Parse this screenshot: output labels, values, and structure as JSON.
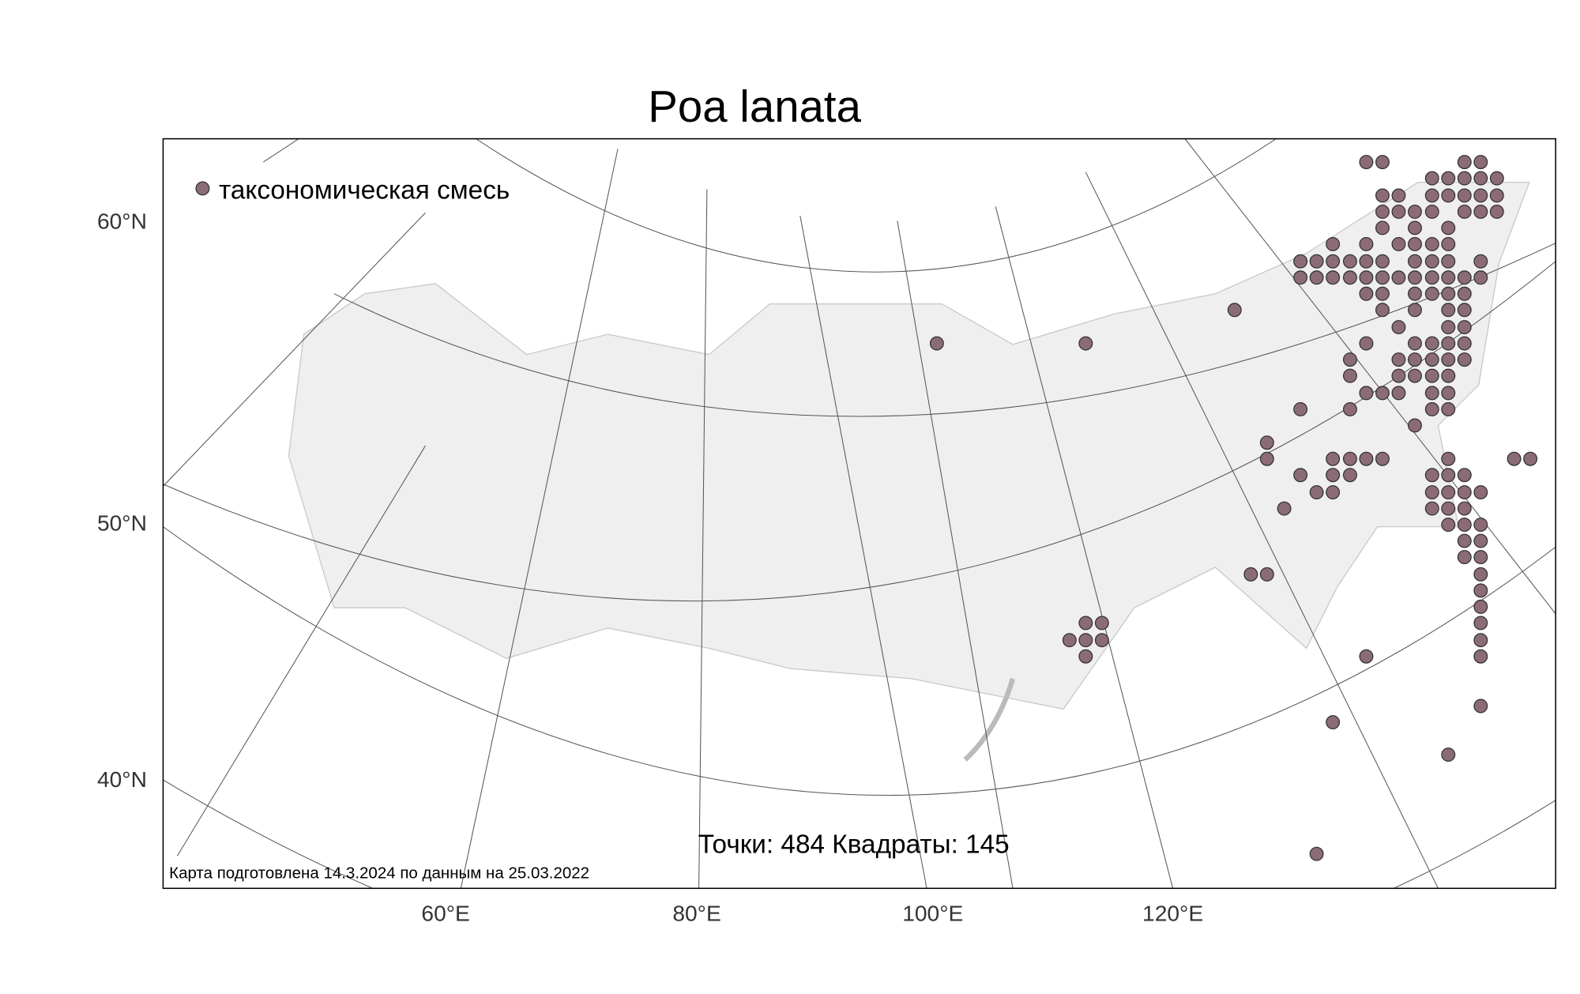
{
  "title": "Poa lanata",
  "legend": {
    "label": "таксономическая смесь"
  },
  "axes": {
    "lat_labels": [
      "60°N",
      "50°N",
      "40°N"
    ],
    "lon_labels": [
      "60°E",
      "80°E",
      "100°E",
      "120°E"
    ]
  },
  "stats": "Точки: 484 Квадраты: 145",
  "footer": "Карта подготовлена 14.3.2024 по данным на 25.03.2022"
}
